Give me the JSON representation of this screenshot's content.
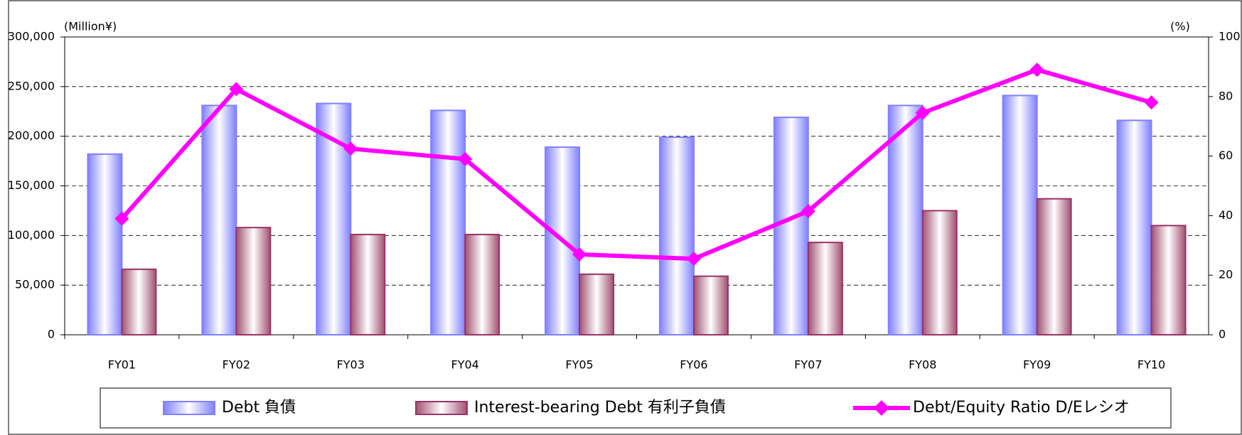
{
  "chart_data": {
    "type": "bar",
    "y_axis_label": "(Million¥)",
    "y2_axis_label": "(%)",
    "categories": [
      "FY01",
      "FY02",
      "FY03",
      "FY04",
      "FY05",
      "FY06",
      "FY07",
      "FY08",
      "FY09",
      "FY10"
    ],
    "series": [
      {
        "name": "Debt 負債",
        "color": "#8080ff",
        "values": [
          182000,
          231000,
          233000,
          226000,
          189000,
          199000,
          219000,
          231000,
          241000,
          216000
        ]
      },
      {
        "name": "Interest-bearing Debt 有利子負債",
        "color": "#993366",
        "values": [
          66000,
          108000,
          101000,
          101000,
          61000,
          59000,
          93000,
          125000,
          137000,
          110000
        ]
      },
      {
        "name": "Debt/Equity Ratio D/Eレシオ",
        "color": "#ff00ff",
        "type": "line",
        "axis": "y2",
        "values": [
          39,
          82.5,
          62.5,
          59,
          27,
          25.5,
          41.5,
          74.5,
          89,
          78
        ]
      }
    ],
    "ylim": [
      0,
      300000
    ],
    "yticks": [
      0,
      {
        "value": 50000,
        "label": "50,000"
      },
      {
        "value": 100000,
        "label": "100,000"
      },
      {
        "value": 150000,
        "label": "150,000"
      },
      {
        "value": 200000,
        "label": "200,000"
      },
      {
        "value": 250000,
        "label": "250,000"
      },
      {
        "value": 300000,
        "label": "300,000"
      }
    ],
    "y2lim": [
      0,
      100
    ],
    "y2ticks": [
      0,
      20,
      40,
      60,
      80,
      100
    ],
    "grid": true,
    "legend": "bottom"
  }
}
